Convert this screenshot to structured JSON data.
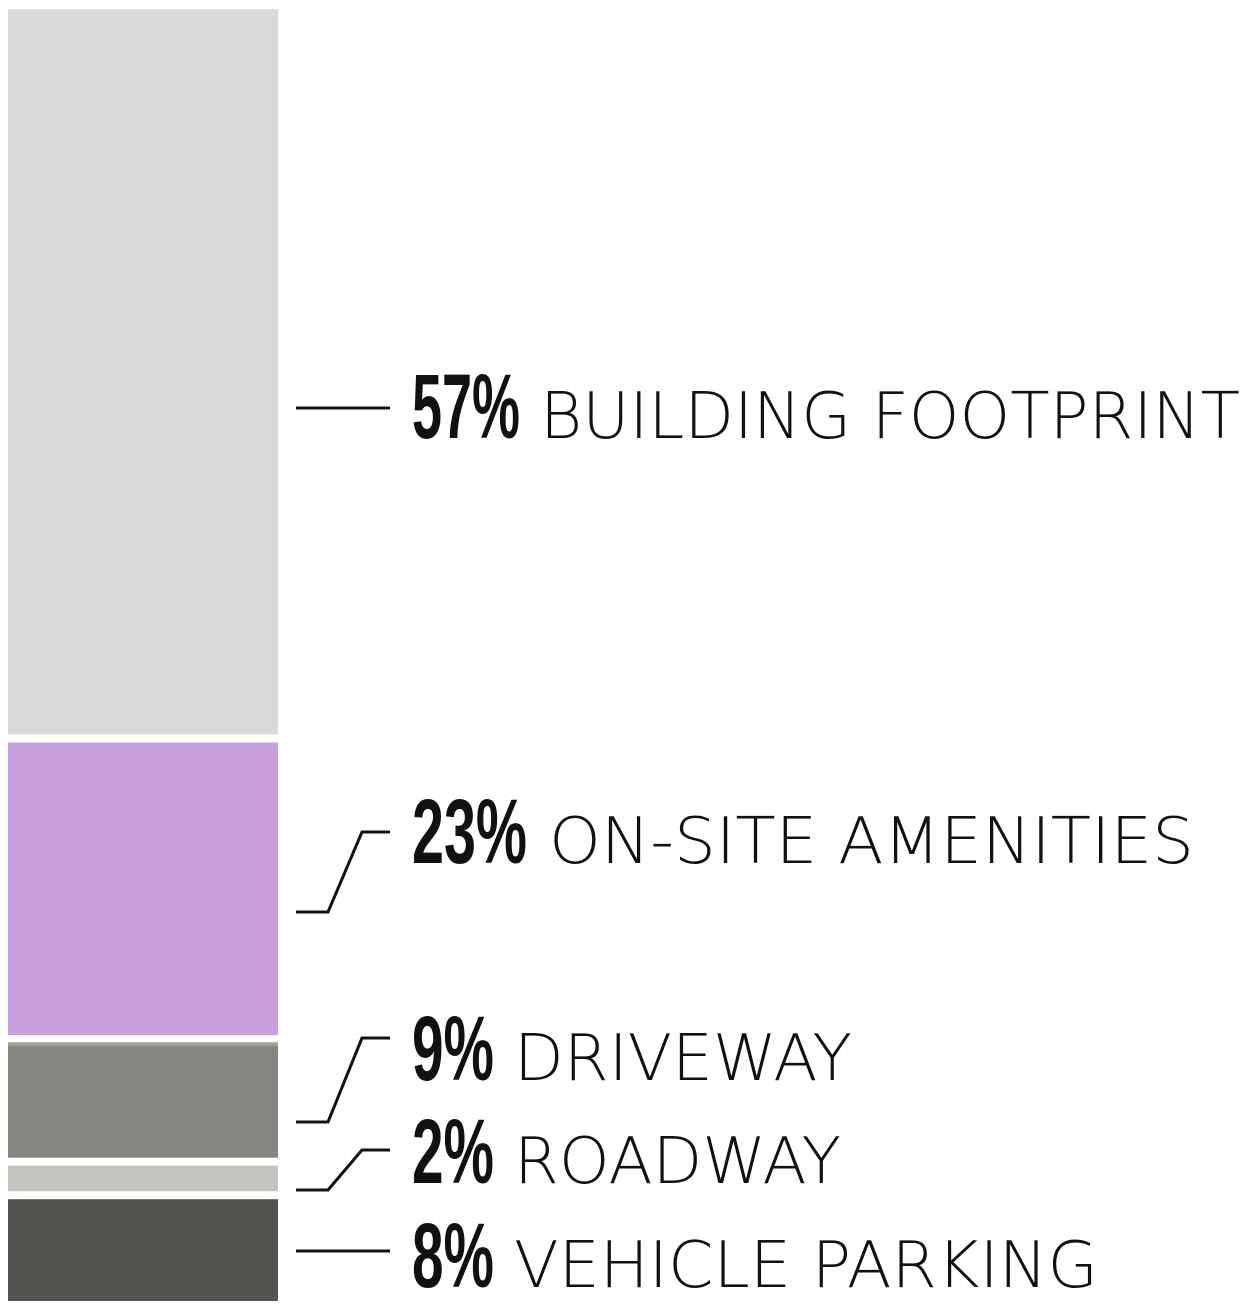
{
  "chart_data": {
    "type": "bar",
    "orientation": "stacked-vertical",
    "segments": [
      {
        "label": "BUILDING FOOTPRINT",
        "percent_label": "57%",
        "value": 57,
        "color": "#d9d9d9"
      },
      {
        "label": "ON-SITE AMENITIES",
        "percent_label": "23%",
        "value": 23,
        "color": "#c9a0de"
      },
      {
        "label": "DRIVEWAY",
        "percent_label": "9%",
        "value": 9,
        "color": "#858580"
      },
      {
        "label": "ROADWAY",
        "percent_label": "2%",
        "value": 2,
        "color": "#c5c3be"
      },
      {
        "label": "VEHICLE PARKING",
        "percent_label": "8%",
        "value": 8,
        "color": "#535350"
      }
    ],
    "accent_line_color": "#9aa291",
    "leader_color": "#1a0f10"
  }
}
